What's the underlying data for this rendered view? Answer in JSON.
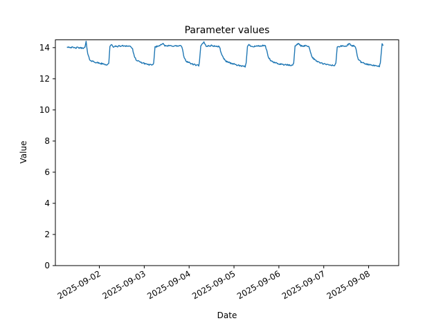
{
  "figure": {
    "title": "Parameter values",
    "xlabel": "Date",
    "ylabel": "Value"
  },
  "chart_data": {
    "type": "line",
    "title": "Parameter values",
    "xlabel": "Date",
    "ylabel": "Value",
    "background_color": "#ffffff",
    "axes_color": "#000000",
    "grid": false,
    "legend": null,
    "x_unit": "days since 2025-09-01 00:00",
    "xlim_days": [
      0.02,
      7.67
    ],
    "ylim": [
      0,
      14.5
    ],
    "y_ticks": [
      0,
      2,
      4,
      6,
      8,
      10,
      12,
      14
    ],
    "x_ticks": [
      {
        "t": 1,
        "label": "2025-09-02"
      },
      {
        "t": 2,
        "label": "2025-09-03"
      },
      {
        "t": 3,
        "label": "2025-09-04"
      },
      {
        "t": 4,
        "label": "2025-09-05"
      },
      {
        "t": 5,
        "label": "2025-09-06"
      },
      {
        "t": 6,
        "label": "2025-09-07"
      },
      {
        "t": 7,
        "label": "2025-09-08"
      }
    ],
    "x_tick_rotation_deg": 30,
    "series": [
      {
        "name": "Parameter",
        "color": "#1f77b4",
        "line_width": 1.4,
        "noise_amplitude": 0.045,
        "points_t_days_value": [
          [
            0.285,
            14.05
          ],
          [
            0.35,
            14.03
          ],
          [
            0.45,
            13.98
          ],
          [
            0.52,
            14.0
          ],
          [
            0.6,
            13.97
          ],
          [
            0.68,
            14.0
          ],
          [
            0.705,
            14.42
          ],
          [
            0.72,
            14.02
          ],
          [
            0.74,
            13.6
          ],
          [
            0.78,
            13.25
          ],
          [
            0.82,
            13.15
          ],
          [
            0.95,
            13.03
          ],
          [
            1.08,
            12.95
          ],
          [
            1.18,
            12.9
          ],
          [
            1.21,
            13.0
          ],
          [
            1.235,
            14.05
          ],
          [
            1.27,
            14.18
          ],
          [
            1.31,
            14.06
          ],
          [
            1.45,
            14.1
          ],
          [
            1.58,
            14.12
          ],
          [
            1.7,
            14.08
          ],
          [
            1.74,
            13.9
          ],
          [
            1.78,
            13.4
          ],
          [
            1.84,
            13.15
          ],
          [
            1.98,
            13.0
          ],
          [
            2.12,
            12.9
          ],
          [
            2.19,
            12.86
          ],
          [
            2.21,
            13.0
          ],
          [
            2.24,
            14.05
          ],
          [
            2.32,
            14.1
          ],
          [
            2.42,
            14.3
          ],
          [
            2.46,
            14.1
          ],
          [
            2.6,
            14.12
          ],
          [
            2.75,
            14.1
          ],
          [
            2.82,
            14.13
          ],
          [
            2.85,
            13.9
          ],
          [
            2.89,
            13.35
          ],
          [
            2.94,
            13.12
          ],
          [
            3.06,
            12.95
          ],
          [
            3.17,
            12.87
          ],
          [
            3.215,
            12.85
          ],
          [
            3.23,
            13.1
          ],
          [
            3.26,
            14.1
          ],
          [
            3.33,
            14.35
          ],
          [
            3.38,
            14.1
          ],
          [
            3.5,
            14.13
          ],
          [
            3.62,
            14.08
          ],
          [
            3.68,
            14.05
          ],
          [
            3.7,
            13.8
          ],
          [
            3.74,
            13.45
          ],
          [
            3.81,
            13.15
          ],
          [
            3.93,
            13.0
          ],
          [
            4.07,
            12.88
          ],
          [
            4.18,
            12.8
          ],
          [
            4.25,
            12.78
          ],
          [
            4.27,
            13.0
          ],
          [
            4.3,
            14.05
          ],
          [
            4.33,
            14.18
          ],
          [
            4.4,
            14.08
          ],
          [
            4.52,
            14.1
          ],
          [
            4.64,
            14.12
          ],
          [
            4.7,
            14.1
          ],
          [
            4.73,
            13.8
          ],
          [
            4.77,
            13.35
          ],
          [
            4.84,
            13.1
          ],
          [
            4.98,
            12.97
          ],
          [
            5.14,
            12.9
          ],
          [
            5.3,
            12.85
          ],
          [
            5.33,
            13.0
          ],
          [
            5.36,
            14.08
          ],
          [
            5.44,
            14.28
          ],
          [
            5.49,
            14.1
          ],
          [
            5.6,
            14.12
          ],
          [
            5.66,
            14.1
          ],
          [
            5.69,
            13.9
          ],
          [
            5.73,
            13.45
          ],
          [
            5.8,
            13.2
          ],
          [
            5.94,
            13.0
          ],
          [
            6.08,
            12.9
          ],
          [
            6.24,
            12.85
          ],
          [
            6.27,
            13.0
          ],
          [
            6.3,
            14.05
          ],
          [
            6.4,
            14.1
          ],
          [
            6.5,
            14.08
          ],
          [
            6.57,
            14.28
          ],
          [
            6.62,
            14.1
          ],
          [
            6.69,
            14.12
          ],
          [
            6.72,
            13.9
          ],
          [
            6.76,
            13.3
          ],
          [
            6.83,
            13.05
          ],
          [
            6.97,
            12.93
          ],
          [
            7.12,
            12.84
          ],
          [
            7.24,
            12.8
          ],
          [
            7.26,
            13.0
          ],
          [
            7.3,
            14.25
          ],
          [
            7.32,
            14.15
          ]
        ]
      }
    ]
  }
}
